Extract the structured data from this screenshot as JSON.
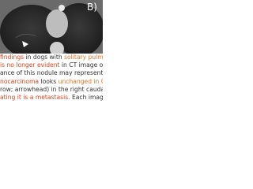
{
  "figure": {
    "label": "B)"
  },
  "caption": {
    "lines": [
      [
        "findings",
        " in dogs with ",
        "solitary pulmonary nodul"
      ],
      [
        "is no longer evident",
        " in CT image obtaine"
      ],
      [
        "ance of this nodule may represent a response to"
      ],
      [
        "nocarcinoma",
        " looks ",
        "unchanged in CT image obt"
      ],
      [
        "row; arrowhead) in the right caudal lobe of a dog"
      ],
      [
        "ating it is a metastasis.",
        " Each image is displayed"
      ]
    ]
  }
}
